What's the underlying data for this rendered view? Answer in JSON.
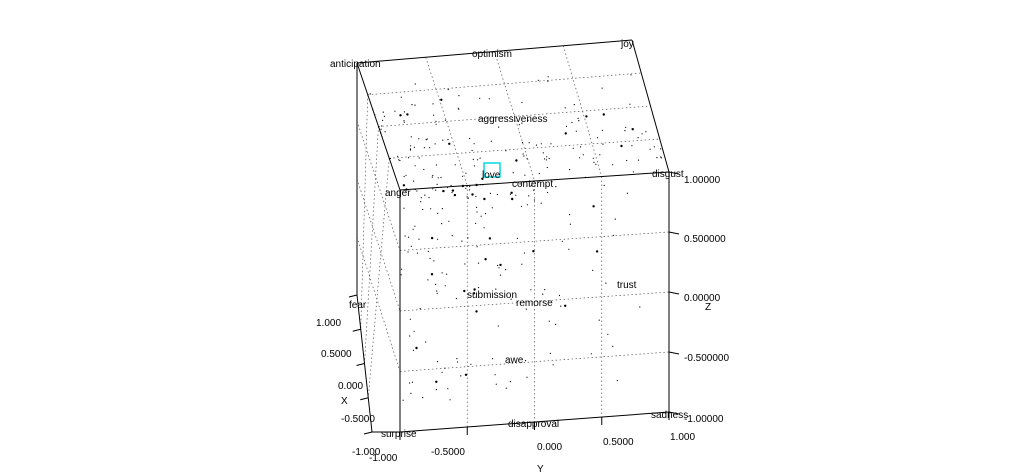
{
  "chart_data": {
    "type": "scatter",
    "title": "",
    "axes": {
      "x": {
        "label": "X",
        "ticks": [
          "1.000",
          "0.5000",
          "0.000",
          "-0.5000",
          "-1.000"
        ]
      },
      "y": {
        "label": "Y",
        "ticks": [
          "-1.000",
          "-0.5000",
          "0.000",
          "0.5000",
          "1.000"
        ]
      },
      "z": {
        "label": "Z",
        "ticks": [
          "1.00000",
          "0.500000",
          "0.00000",
          "-0.500000",
          "-1.00000"
        ]
      }
    },
    "grid": true,
    "emotion_labels": [
      "anticipation",
      "optimism",
      "joy",
      "aggressiveness",
      "love",
      "contempt",
      "disgust",
      "anger",
      "submission",
      "remorse",
      "trust",
      "fear",
      "awe",
      "surprise",
      "disapproval",
      "sadness"
    ],
    "selected": "love",
    "selection_color": "#00d8e8",
    "point_color": "#000000",
    "point_clusters": [
      {
        "region": "top face",
        "count": 150
      },
      {
        "region": "front face",
        "count": 170
      }
    ]
  }
}
